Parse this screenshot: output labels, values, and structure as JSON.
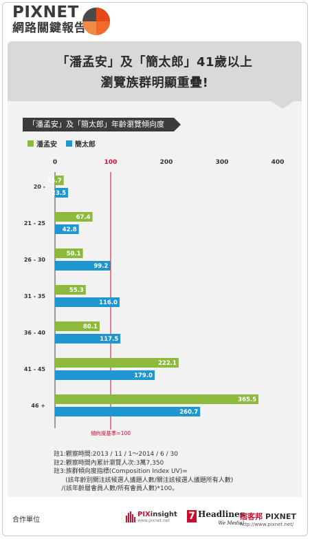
{
  "brand": {
    "name_en": "PIXNET",
    "name_zh": "網路關鍵報告"
  },
  "headline": {
    "line1": "「潘孟安」及「簡太郎」41歲以上",
    "line2": "瀏覽族群明顯重疊!"
  },
  "colors": {
    "series1": "#8dba3c",
    "series2": "#1f96cf",
    "baseline": "#c8102e"
  },
  "chart_data": {
    "type": "bar",
    "orientation": "horizontal",
    "subtitle": "「潘孟安」及「簡太郎」年齡瀏覽傾向度",
    "categories": [
      "20 -",
      "21 - 25",
      "26 - 30",
      "31 - 35",
      "36 - 40",
      "41 - 45",
      "46 +"
    ],
    "series": [
      {
        "name": "潘孟安",
        "values": [
          15.7,
          67.4,
          50.1,
          55.3,
          80.1,
          222.1,
          365.5
        ]
      },
      {
        "name": "簡太郎",
        "values": [
          23.5,
          42.8,
          99.2,
          116.0,
          117.5,
          179.0,
          260.7
        ]
      }
    ],
    "value_labels": [
      [
        "15.7",
        "67.4",
        "50.1",
        "55.3",
        "80.1",
        "222.1",
        "365.5"
      ],
      [
        "23.5",
        "42.8",
        "99.2",
        "116.0",
        "117.5",
        "179.0",
        "260.7"
      ]
    ],
    "xticks": [
      0,
      100,
      200,
      300,
      400
    ],
    "xtick_labels": [
      "0",
      "100",
      "200",
      "300",
      "400"
    ],
    "xlim": [
      0,
      400
    ],
    "baseline": {
      "value": 100,
      "label": "傾向度基準=100"
    },
    "legend_position": "top-left",
    "grid": false
  },
  "notes": [
    "註1:觀察時間:2013 / 11 / 1～2014 / 6 / 30",
    "註2:觀察時間內累計瀏覽人次:3萬7,350",
    "註3:族群傾向度指標(Composition Index UV)=",
    "      (該年齡別關注該候選人議題人數/關注該候選人議題所有人數)",
    "    /(該年齡層會員人數/所有會員人數)*100。"
  ],
  "footer": {
    "label": "合作單位",
    "insight_prefix": "PIX",
    "insight_suffix": "insight",
    "insight_url": "www.pixnet.net",
    "headlines_num": "7",
    "headlines_name": "Headlines",
    "headlines_tag": "We Media!",
    "pixnet_zh": "痞客邦",
    "pixnet_en": "PIXNET",
    "pixnet_url": "http://www.pixnet.net/"
  }
}
